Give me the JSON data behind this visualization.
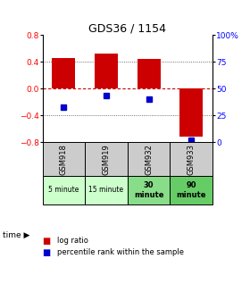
{
  "title": "GDS36 / 1154",
  "samples": [
    "GSM918",
    "GSM919",
    "GSM932",
    "GSM933"
  ],
  "time_labels": [
    "5 minute",
    "15 minute",
    "30\nminute",
    "90\nminute"
  ],
  "log_ratios": [
    0.46,
    0.52,
    0.44,
    -0.72
  ],
  "percentile_ranks": [
    0.33,
    0.44,
    0.4,
    0.02
  ],
  "bar_color": "#cc0000",
  "pct_color": "#0000cc",
  "ylim": [
    -0.8,
    0.8
  ],
  "y2lim": [
    0,
    100
  ],
  "yticks": [
    -0.8,
    -0.4,
    0,
    0.4,
    0.8
  ],
  "y2ticks": [
    0,
    25,
    50,
    75,
    100
  ],
  "grid_ticks": [
    -0.4,
    0,
    0.4
  ],
  "time_colors": [
    "#ccffcc",
    "#ccffcc",
    "#88dd88",
    "#66cc66"
  ],
  "gsm_bg": "#cccccc",
  "bar_width": 0.55,
  "zero_line_color": "#cc0000",
  "grid_color": "#444444"
}
